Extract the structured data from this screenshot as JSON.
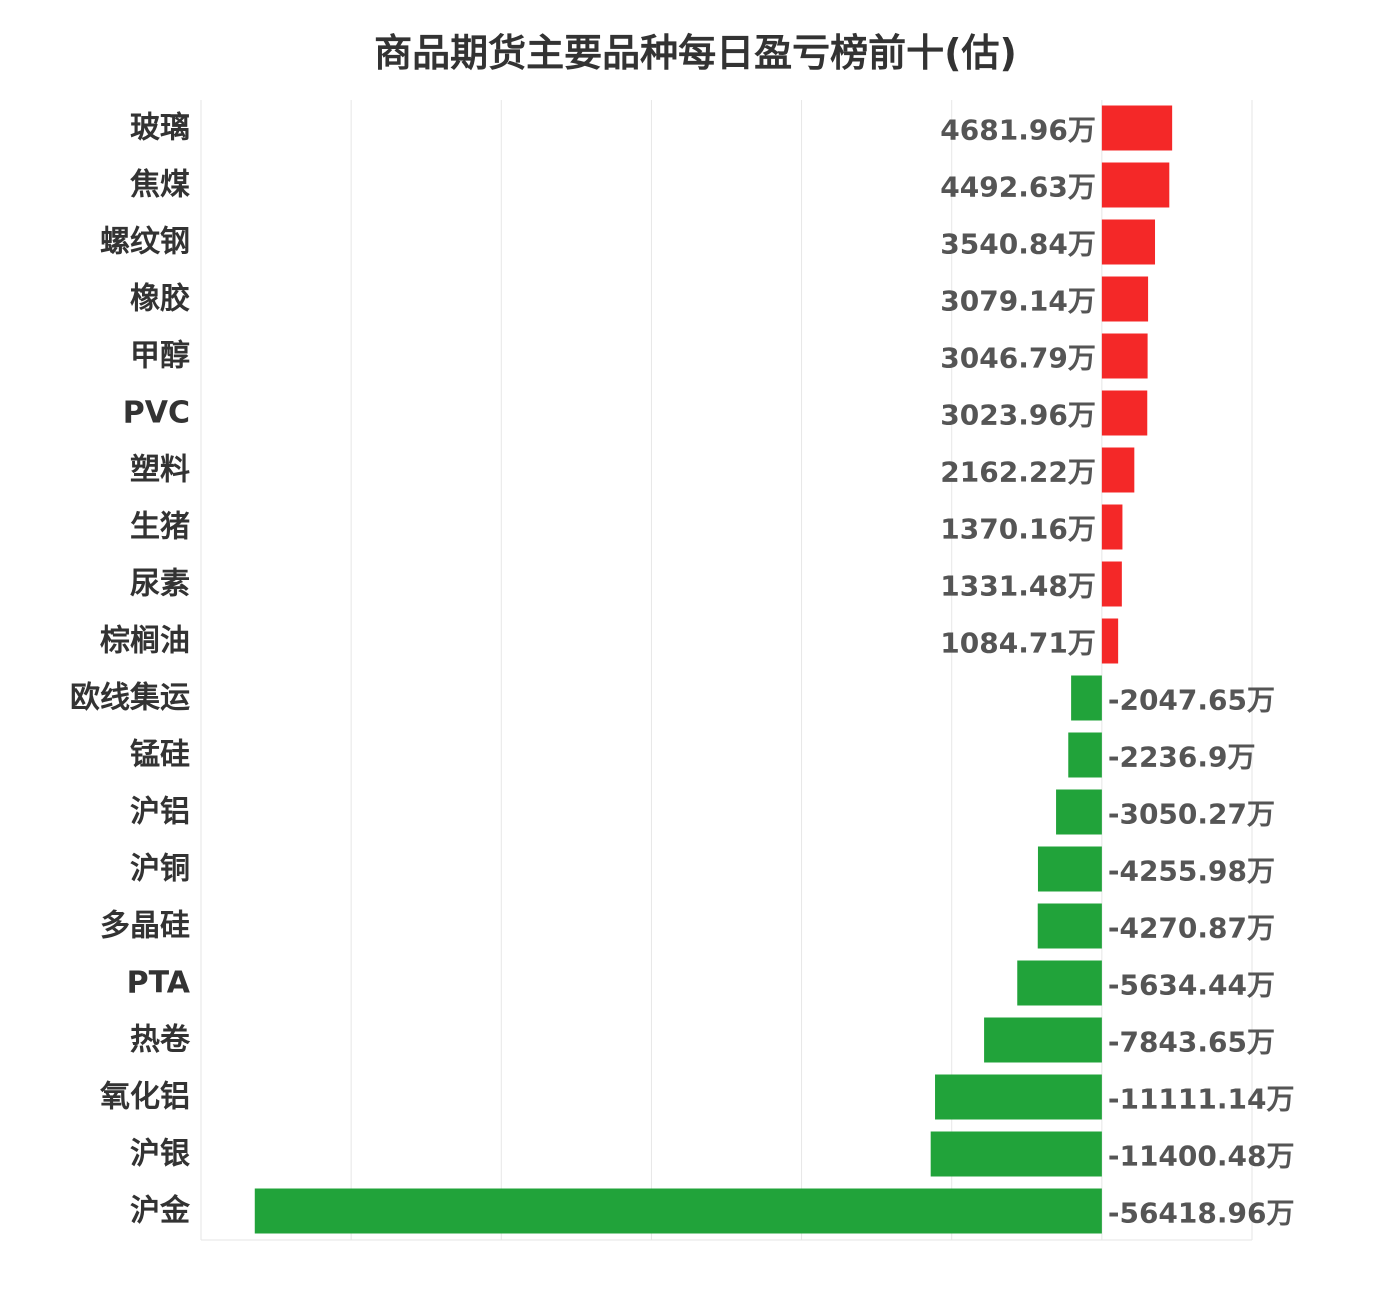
{
  "chart_data": {
    "type": "bar",
    "orientation": "horizontal",
    "title": "商品期货主要品种每日盈亏榜前十(估)",
    "unit": "万",
    "categories": [
      "玻璃",
      "焦煤",
      "螺纹钢",
      "橡胶",
      "甲醇",
      "PVC",
      "塑料",
      "生猪",
      "尿素",
      "棕榈油",
      "欧线集运",
      "锰硅",
      "沪铝",
      "沪铜",
      "多晶硅",
      "PTA",
      "热卷",
      "氧化铝",
      "沪银",
      "沪金"
    ],
    "values": [
      4681.96,
      4492.63,
      3540.84,
      3079.14,
      3046.79,
      3023.96,
      2162.22,
      1370.16,
      1331.48,
      1084.71,
      -2047.65,
      -2236.9,
      -3050.27,
      -4255.98,
      -4270.87,
      -5634.44,
      -7843.65,
      -11111.14,
      -11400.48,
      -56418.96
    ],
    "value_labels": [
      "4681.96万",
      "4492.63万",
      "3540.84万",
      "3079.14万",
      "3046.79万",
      "3023.96万",
      "2162.22万",
      "1370.16万",
      "1331.48万",
      "1084.71万",
      "-2047.65万",
      "-2236.9万",
      "-3050.27万",
      "-4255.98万",
      "-4270.87万",
      "-5634.44万",
      "-7843.65万",
      "-11111.14万",
      "-11400.48万",
      "-56418.96万"
    ],
    "xlim": [
      -60000,
      10000
    ],
    "grid": true,
    "colors": {
      "positive": "#f42828",
      "negative": "#21a33a",
      "grid": "#e6e6e6"
    }
  }
}
